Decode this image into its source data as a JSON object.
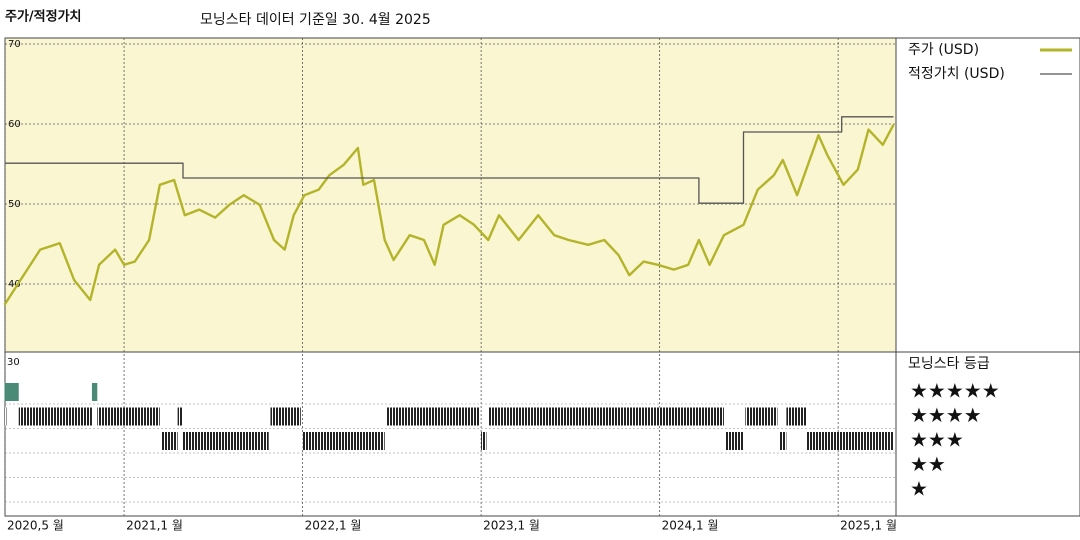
{
  "chart_data": {
    "type": "line",
    "title": "주가/적정가치",
    "subtitle": "모닝스타 데이터 기준일 30. 4월 2025",
    "xlim": [
      2020.333,
      2025.324
    ],
    "xticks": [
      {
        "value": 2020.333,
        "label": "2020,5 월"
      },
      {
        "value": 2021.0,
        "label": "2021,1 월"
      },
      {
        "value": 2022.0,
        "label": "2022,1 월"
      },
      {
        "value": 2023.0,
        "label": "2023,1 월"
      },
      {
        "value": 2024.0,
        "label": "2024,1 월"
      },
      {
        "value": 2025.0,
        "label": "2025,1 월"
      }
    ],
    "ylim": [
      31.5,
      70.75
    ],
    "yticks": [
      40,
      50,
      60,
      70
    ],
    "grid": true,
    "series": [
      {
        "name": "주가 (USD)",
        "color": "#b4b42a",
        "x": [
          2020.33,
          2020.42,
          2020.53,
          2020.64,
          2020.72,
          2020.81,
          2020.86,
          2020.95,
          2021.0,
          2021.06,
          2021.14,
          2021.2,
          2021.28,
          2021.34,
          2021.42,
          2021.51,
          2021.59,
          2021.67,
          2021.76,
          2021.84,
          2021.9,
          2021.95,
          2022.01,
          2022.09,
          2022.15,
          2022.23,
          2022.31,
          2022.34,
          2022.4,
          2022.46,
          2022.51,
          2022.6,
          2022.68,
          2022.74,
          2022.79,
          2022.88,
          2022.96,
          2023.04,
          2023.1,
          2023.21,
          2023.32,
          2023.41,
          2023.49,
          2023.6,
          2023.69,
          2023.77,
          2023.83,
          2023.91,
          2023.99,
          2024.08,
          2024.16,
          2024.22,
          2024.28,
          2024.36,
          2024.47,
          2024.55,
          2024.64,
          2024.69,
          2024.77,
          2024.89,
          2024.94,
          2025.03,
          2025.11,
          2025.17,
          2025.25,
          2025.31
        ],
        "values": [
          37.4,
          40.5,
          44.3,
          45.1,
          40.5,
          38.0,
          42.4,
          44.3,
          42.4,
          42.8,
          45.5,
          52.4,
          53.0,
          48.6,
          49.3,
          48.3,
          49.9,
          51.1,
          49.9,
          45.5,
          44.3,
          48.6,
          51.1,
          51.8,
          53.6,
          54.9,
          57.0,
          52.4,
          53.0,
          45.5,
          43.0,
          46.1,
          45.5,
          42.4,
          47.4,
          48.6,
          47.4,
          45.5,
          48.6,
          45.5,
          48.6,
          46.1,
          45.5,
          44.9,
          45.5,
          43.6,
          41.1,
          42.8,
          42.4,
          41.8,
          42.4,
          45.5,
          42.4,
          46.1,
          47.4,
          51.8,
          53.6,
          55.5,
          51.1,
          58.6,
          56.1,
          52.4,
          54.3,
          59.3,
          57.4,
          59.9
        ]
      },
      {
        "name": "적정가치 (USD)",
        "color": "#555555",
        "x": [
          2020.33,
          2021.33,
          2021.33,
          2024.22,
          2024.22,
          2024.47,
          2024.47,
          2025.02,
          2025.02,
          2025.31
        ],
        "values": [
          55.1,
          55.1,
          53.25,
          53.25,
          50.1,
          50.1,
          59.0,
          59.0,
          60.9,
          60.9
        ]
      }
    ],
    "rating_title": "모닝스타 등급",
    "rating_note": "30",
    "rating_labels": [
      "★",
      "★★",
      "★★★",
      "★★★★",
      "★★★★★"
    ],
    "ratings": [
      {
        "start": 2020.33,
        "end": 2020.41,
        "stars": 5
      },
      {
        "start": 2020.82,
        "end": 2020.85,
        "stars": 5
      },
      {
        "start": 2020.33,
        "end": 2020.34,
        "stars": 4
      },
      {
        "start": 2020.41,
        "end": 2020.82,
        "stars": 4
      },
      {
        "start": 2020.85,
        "end": 2021.2,
        "stars": 4
      },
      {
        "start": 2021.3,
        "end": 2021.33,
        "stars": 4
      },
      {
        "start": 2021.82,
        "end": 2021.99,
        "stars": 4
      },
      {
        "start": 2022.47,
        "end": 2022.99,
        "stars": 4
      },
      {
        "start": 2023.04,
        "end": 2024.36,
        "stars": 4
      },
      {
        "start": 2024.48,
        "end": 2024.66,
        "stars": 4
      },
      {
        "start": 2024.71,
        "end": 2024.82,
        "stars": 4
      },
      {
        "start": 2021.21,
        "end": 2021.3,
        "stars": 3
      },
      {
        "start": 2021.33,
        "end": 2021.81,
        "stars": 3
      },
      {
        "start": 2022.0,
        "end": 2022.46,
        "stars": 3
      },
      {
        "start": 2023.0,
        "end": 2023.03,
        "stars": 3
      },
      {
        "start": 2024.37,
        "end": 2024.47,
        "stars": 3
      },
      {
        "start": 2024.67,
        "end": 2024.71,
        "stars": 3
      },
      {
        "start": 2024.82,
        "end": 2025.31,
        "stars": 3
      }
    ]
  }
}
